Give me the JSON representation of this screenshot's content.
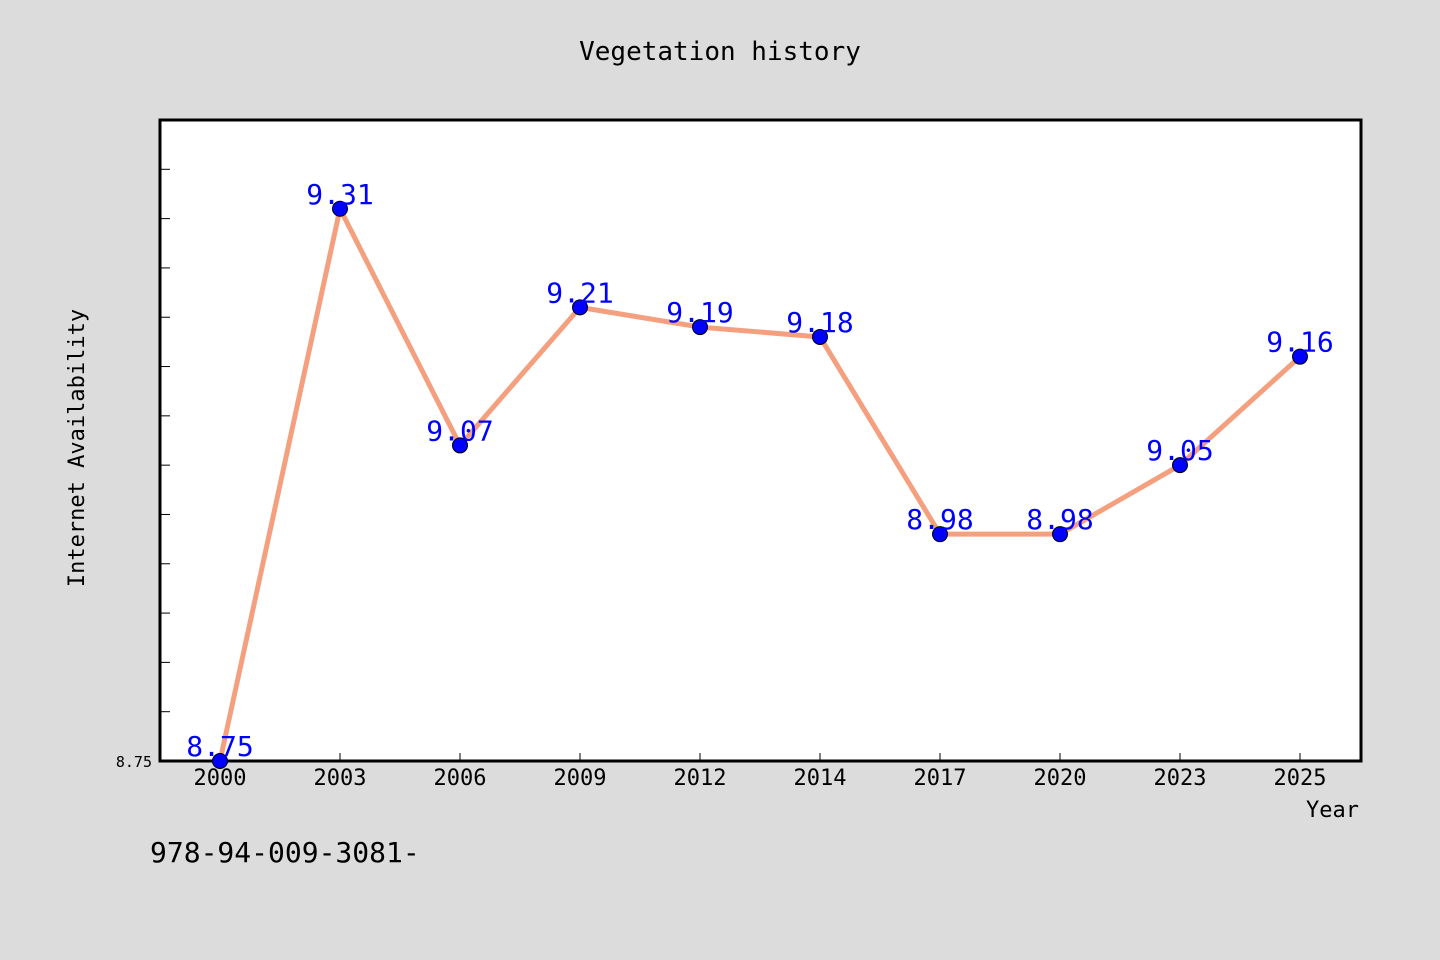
{
  "chart_data": {
    "type": "line",
    "title": "Vegetation history",
    "xlabel": "Year",
    "ylabel": "Internet Availability",
    "categories": [
      "2000",
      "2003",
      "2006",
      "2009",
      "2012",
      "2014",
      "2017",
      "2020",
      "2023",
      "2025"
    ],
    "series": [
      {
        "values": [
          8.75,
          9.31,
          9.07,
          9.21,
          9.19,
          9.18,
          8.98,
          8.98,
          9.05,
          9.16
        ],
        "data_labels": [
          "8.75",
          "9.31",
          "9.07",
          "9.21",
          "9.19",
          "9.18",
          "8.98",
          "8.98",
          "9.05",
          "9.16"
        ]
      }
    ],
    "ylim": [
      8.75,
      9.4
    ],
    "y_tick_labels": [
      "8.75"
    ],
    "grid": false,
    "legend": "none",
    "colors": {
      "line": "#f4a07f",
      "marker": "#0000ff",
      "label": "#0000ff",
      "background": "#dcdcdc",
      "plot_background": "#ffffff"
    }
  },
  "footer_text": "978-94-009-3081-"
}
